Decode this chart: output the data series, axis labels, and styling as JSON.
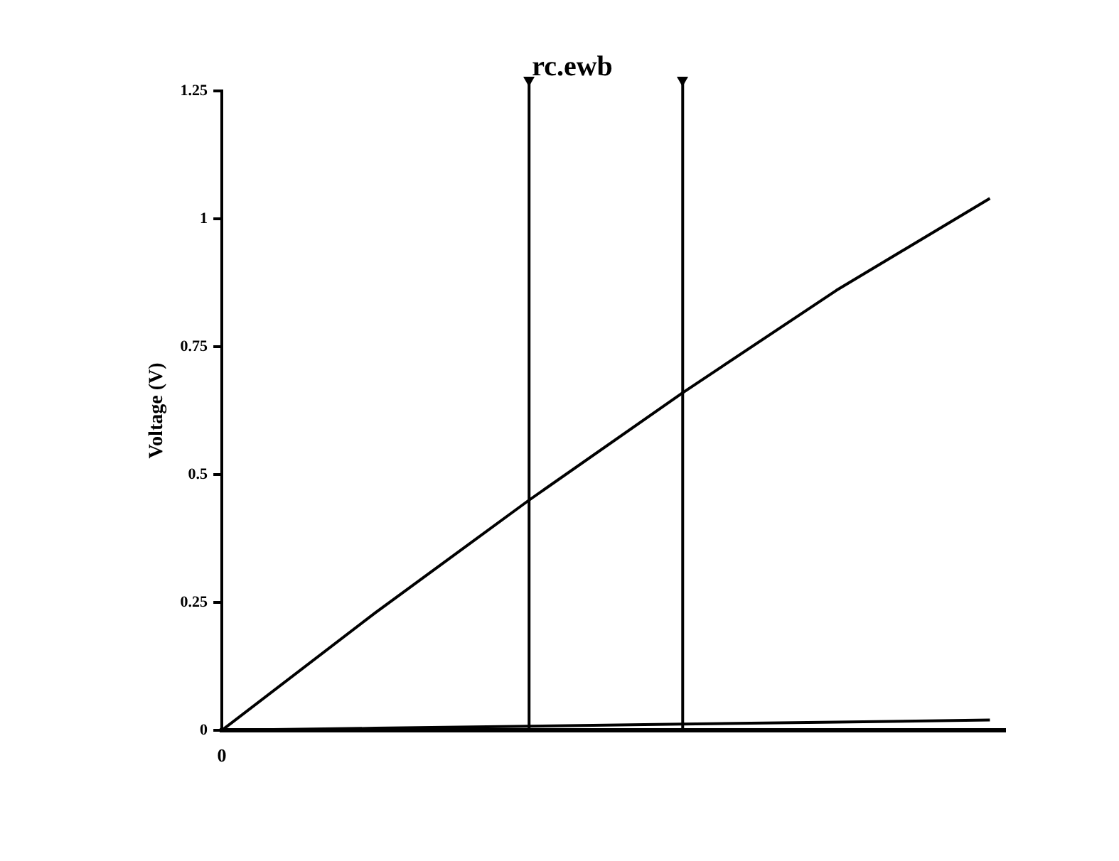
{
  "chart_data": {
    "type": "line",
    "title": "rc.ewb",
    "ylabel": "Voltage (V)",
    "categories": [
      null,
      null,
      null,
      null,
      null,
      null
    ],
    "annotations": [
      "0"
    ],
    "series": [
      {
        "color": "#000000",
        "values": [
          0,
          0.23,
          0.45,
          0.66,
          0.86,
          1.04
        ]
      },
      {
        "color": "#000000",
        "values": [
          0,
          0.004,
          0.008,
          0.012,
          0.016,
          0.02
        ]
      }
    ],
    "ylim": [
      0,
      1.25
    ],
    "yticks": [
      0,
      0.25,
      0.5,
      0.75,
      1,
      1.25
    ],
    "grid": false,
    "legend": false,
    "marker": "none",
    "line_style": "solid"
  }
}
